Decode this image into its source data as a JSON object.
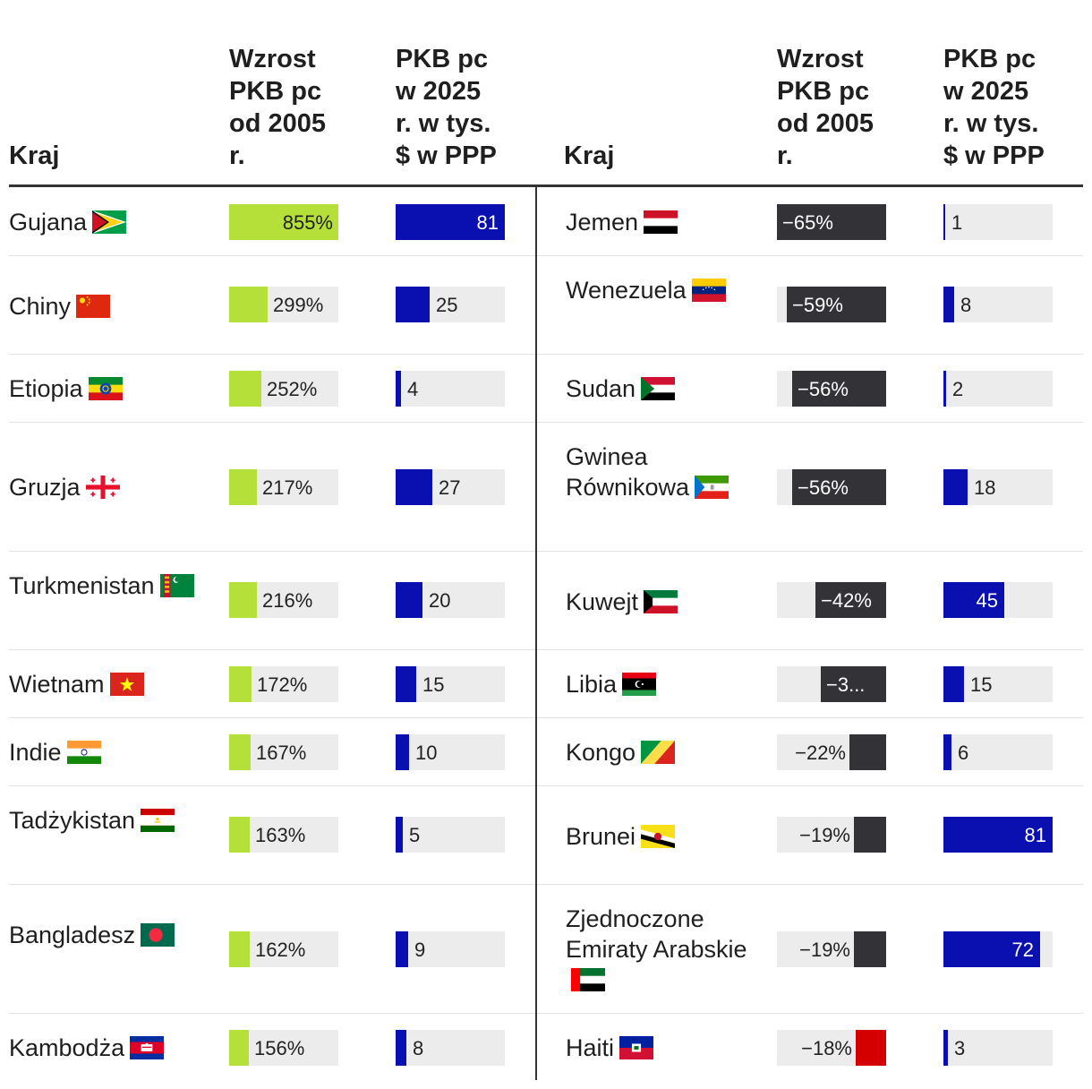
{
  "headers": {
    "country": "Kraj",
    "growth": "Wzrost\nPKB pc\nod 2005\nr.",
    "gdp": "PKB pc\nw 2025\nr. w tys.\n$ w PPP"
  },
  "colors": {
    "growth_positive": "#b5e03a",
    "gdp_bar": "#0a0fb0",
    "decline_bar": "#333237",
    "decline_highlight": "#d40000",
    "track": "#ececec"
  },
  "chart_data": [
    {
      "type": "table",
      "columns": [
        "Kraj",
        "Wzrost PKB pc od 2005 r.",
        "PKB pc w 2025 r. w tys. $ w PPP"
      ],
      "growth_scale_max": 855,
      "gdp_scale_max": 81,
      "rows": [
        {
          "country": "Gujana",
          "flag": "guyana-flag",
          "growth": 855,
          "growth_label": "855%",
          "gdp": 81,
          "gdp_label": "81"
        },
        {
          "country": "Chiny",
          "flag": "china-flag",
          "growth": 299,
          "growth_label": "299%",
          "gdp": 25,
          "gdp_label": "25"
        },
        {
          "country": "Etiopia",
          "flag": "ethiopia-flag",
          "growth": 252,
          "growth_label": "252%",
          "gdp": 4,
          "gdp_label": "4"
        },
        {
          "country": "Gruzja",
          "flag": "georgia-flag",
          "growth": 217,
          "growth_label": "217%",
          "gdp": 27,
          "gdp_label": "27"
        },
        {
          "country": "Turkmenistan",
          "flag": "turkmenistan-flag",
          "growth": 216,
          "growth_label": "216%",
          "gdp": 20,
          "gdp_label": "20"
        },
        {
          "country": "Wietnam",
          "flag": "vietnam-flag",
          "growth": 172,
          "growth_label": "172%",
          "gdp": 15,
          "gdp_label": "15"
        },
        {
          "country": "Indie",
          "flag": "india-flag",
          "growth": 167,
          "growth_label": "167%",
          "gdp": 10,
          "gdp_label": "10"
        },
        {
          "country": "Tadżykistan",
          "flag": "tajikistan-flag",
          "growth": 163,
          "growth_label": "163%",
          "gdp": 5,
          "gdp_label": "5"
        },
        {
          "country": "Bangladesz",
          "flag": "bangladesh-flag",
          "growth": 162,
          "growth_label": "162%",
          "gdp": 9,
          "gdp_label": "9"
        },
        {
          "country": "Kambodża",
          "flag": "cambodia-flag",
          "growth": 156,
          "growth_label": "156%",
          "gdp": 8,
          "gdp_label": "8"
        }
      ]
    },
    {
      "type": "table",
      "columns": [
        "Kraj",
        "Wzrost PKB pc od 2005 r.",
        "PKB pc w 2025 r. w tys. $ w PPP"
      ],
      "growth_scale_max": 65,
      "gdp_scale_max": 81,
      "rows": [
        {
          "country": "Jemen",
          "flag": "yemen-flag",
          "growth": -65,
          "growth_label": "−65%",
          "gdp": 1,
          "gdp_label": "1"
        },
        {
          "country": "Wenezuela",
          "flag": "venezuela-flag",
          "growth": -59,
          "growth_label": "−59%",
          "gdp": 8,
          "gdp_label": "8"
        },
        {
          "country": "Sudan",
          "flag": "sudan-flag",
          "growth": -56,
          "growth_label": "−56%",
          "gdp": 2,
          "gdp_label": "2"
        },
        {
          "country": "Gwinea Równikowa",
          "flag": "equatorial-guinea-flag",
          "growth": -56,
          "growth_label": "−56%",
          "gdp": 18,
          "gdp_label": "18"
        },
        {
          "country": "Kuwejt",
          "flag": "kuwait-flag",
          "growth": -42,
          "growth_label": "−42%",
          "gdp": 45,
          "gdp_label": "45"
        },
        {
          "country": "Libia",
          "flag": "libya-flag",
          "growth": -39,
          "growth_label": "−3...",
          "gdp": 15,
          "gdp_label": "15"
        },
        {
          "country": "Kongo",
          "flag": "congo-flag",
          "growth": -22,
          "growth_label": "−22%",
          "gdp": 6,
          "gdp_label": "6"
        },
        {
          "country": "Brunei",
          "flag": "brunei-flag",
          "growth": -19,
          "growth_label": "−19%",
          "gdp": 81,
          "gdp_label": "81"
        },
        {
          "country": "Zjednoczone Emiraty Arabskie",
          "flag": "uae-flag",
          "growth": -19,
          "growth_label": "−19%",
          "gdp": 72,
          "gdp_label": "72"
        },
        {
          "country": "Haiti",
          "flag": "haiti-flag",
          "growth": -18,
          "growth_label": "−18%",
          "gdp": 3,
          "gdp_label": "3",
          "highlight": true
        }
      ]
    }
  ]
}
